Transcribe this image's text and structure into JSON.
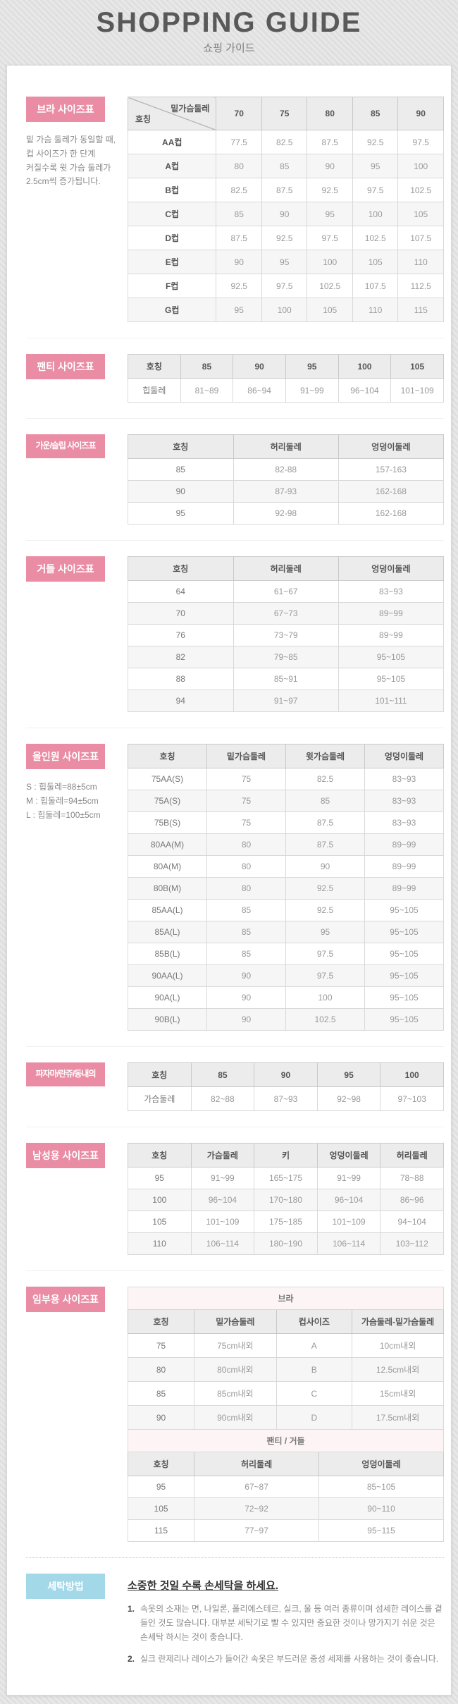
{
  "header": {
    "title": "SHOPPING GUIDE",
    "subtitle": "쇼핑 가이드"
  },
  "colors": {
    "badge_pink": "#e98ca4",
    "badge_blue": "#a2d8e8",
    "subheader_pink_text": "#e0869f",
    "subheader_pink_bg": "#fdf4f6"
  },
  "sections": {
    "bra": {
      "badge": "브라 사이즈표",
      "note": "밑 가슴 둘레가 동일할 때,\n컵 사이즈가 한 단계\n커질수록 윗 가슴 둘레가\n2.5cm씩 증가됩니다.",
      "corner_top": "밑가슴둘레",
      "corner_bottom": "호칭",
      "cols": [
        "70",
        "75",
        "80",
        "85",
        "90"
      ],
      "rows": [
        [
          "AA컵",
          "77.5",
          "82.5",
          "87.5",
          "92.5",
          "97.5"
        ],
        [
          "A컵",
          "80",
          "85",
          "90",
          "95",
          "100"
        ],
        [
          "B컵",
          "82.5",
          "87.5",
          "92.5",
          "97.5",
          "102.5"
        ],
        [
          "C컵",
          "85",
          "90",
          "95",
          "100",
          "105"
        ],
        [
          "D컵",
          "87.5",
          "92.5",
          "97.5",
          "102.5",
          "107.5"
        ],
        [
          "E컵",
          "90",
          "95",
          "100",
          "105",
          "110"
        ],
        [
          "F컵",
          "92.5",
          "97.5",
          "102.5",
          "107.5",
          "112.5"
        ],
        [
          "G컵",
          "95",
          "100",
          "105",
          "110",
          "115"
        ]
      ]
    },
    "panty": {
      "badge": "팬티 사이즈표",
      "cols": [
        "호칭",
        "85",
        "90",
        "95",
        "100",
        "105"
      ],
      "rows": [
        [
          "힙둘레",
          "81~89",
          "86~94",
          "91~99",
          "96~104",
          "101~109"
        ]
      ]
    },
    "gown": {
      "badge": "가운/슬립 사이즈표",
      "cols": [
        "호칭",
        "허리둘레",
        "엉덩이둘레"
      ],
      "rows": [
        [
          "85",
          "82-88",
          "157-163"
        ],
        [
          "90",
          "87-93",
          "162-168"
        ],
        [
          "95",
          "92-98",
          "162-168"
        ]
      ]
    },
    "girdle": {
      "badge": "거들 사이즈표",
      "cols": [
        "호칭",
        "허리둘레",
        "엉덩이둘레"
      ],
      "rows": [
        [
          "64",
          "61~67",
          "83~93"
        ],
        [
          "70",
          "67~73",
          "89~99"
        ],
        [
          "76",
          "73~79",
          "89~99"
        ],
        [
          "82",
          "79~85",
          "95~105"
        ],
        [
          "88",
          "85~91",
          "95~105"
        ],
        [
          "94",
          "91~97",
          "101~111"
        ]
      ]
    },
    "allinone": {
      "badge": "올인원 사이즈표",
      "note": "S : 힙둘레=88±5cm\nM : 힙둘레=94±5cm\nL : 힙둘레=100±5cm",
      "cols": [
        "호칭",
        "밑가슴둘레",
        "윗가슴둘레",
        "엉덩이둘레"
      ],
      "rows": [
        [
          "75AA(S)",
          "75",
          "82.5",
          "83~93"
        ],
        [
          "75A(S)",
          "75",
          "85",
          "83~93"
        ],
        [
          "75B(S)",
          "75",
          "87.5",
          "83~93"
        ],
        [
          "80AA(M)",
          "80",
          "87.5",
          "89~99"
        ],
        [
          "80A(M)",
          "80",
          "90",
          "89~99"
        ],
        [
          "80B(M)",
          "80",
          "92.5",
          "89~99"
        ],
        [
          "85AA(L)",
          "85",
          "92.5",
          "95~105"
        ],
        [
          "85A(L)",
          "85",
          "95",
          "95~105"
        ],
        [
          "85B(L)",
          "85",
          "97.5",
          "95~105"
        ],
        [
          "90AA(L)",
          "90",
          "97.5",
          "95~105"
        ],
        [
          "90A(L)",
          "90",
          "100",
          "95~105"
        ],
        [
          "90B(L)",
          "90",
          "102.5",
          "95~105"
        ]
      ]
    },
    "pajama": {
      "badge": "파자마/란쥬/동내의",
      "cols": [
        "호칭",
        "85",
        "90",
        "95",
        "100"
      ],
      "rows": [
        [
          "가슴둘레",
          "82~88",
          "87~93",
          "92~98",
          "97~103"
        ]
      ]
    },
    "men": {
      "badge": "남성용 사이즈표",
      "cols": [
        "호칭",
        "가슴둘레",
        "키",
        "엉덩이둘레",
        "허리둘레"
      ],
      "rows": [
        [
          "95",
          "91~99",
          "165~175",
          "91~99",
          "78~88"
        ],
        [
          "100",
          "96~104",
          "170~180",
          "96~104",
          "86~96"
        ],
        [
          "105",
          "101~109",
          "175~185",
          "101~109",
          "94~104"
        ],
        [
          "110",
          "106~114",
          "180~190",
          "106~114",
          "103~112"
        ]
      ]
    },
    "maternity": {
      "badge": "임부용 사이즈표",
      "bra_title": "브라",
      "bra_cols": [
        "호칭",
        "밑가슴둘레",
        "컵사이즈",
        "가슴둘레-밑가슴둘레"
      ],
      "bra_rows": [
        [
          "75",
          "75cm내외",
          "A",
          "10cm내외"
        ],
        [
          "80",
          "80cm내외",
          "B",
          "12.5cm내외"
        ],
        [
          "85",
          "85cm내외",
          "C",
          "15cm내외"
        ],
        [
          "90",
          "90cm내외",
          "D",
          "17.5cm내외"
        ]
      ],
      "pg_title": "팬티 / 거들",
      "pg_cols": [
        "호칭",
        "허리둘레",
        "엉덩이둘레"
      ],
      "pg_rows": [
        [
          "95",
          "67~87",
          "85~105"
        ],
        [
          "105",
          "72~92",
          "90~110"
        ],
        [
          "115",
          "77~97",
          "95~115"
        ]
      ]
    },
    "washing": {
      "badge": "세탁방법",
      "title": "소중한 것일 수록 손세탁을 하세요.",
      "items": [
        {
          "no": "1.",
          "text": "속옷의 소재는 면, 나일론, 폴리에스테르, 실크, 울 등 여러 종류이며 섬세한 레이스를 곁들인 것도 많습니다. 대부분 세탁기로 빨 수 있지만 중요한 것이나 망가지기 쉬운 것은 손세탁 하시는 것이 좋습니다."
        },
        {
          "no": "2.",
          "text": "실크 란제리나 레이스가 들어간 속옷은 부드러운 중성 세제를 사용하는 것이 좋습니다."
        }
      ]
    }
  }
}
